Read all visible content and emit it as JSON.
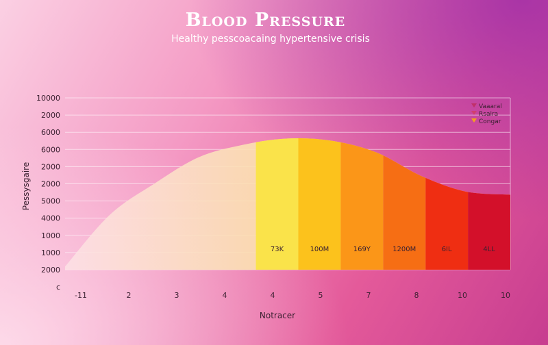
{
  "chart_data": {
    "type": "area",
    "title": "Blood Pressure",
    "subtitle": "Healthy pesscoacaing hypertensive crisis",
    "ylabel": "Pessysgaire",
    "xlabel": "Notracer",
    "y_tick_labels": [
      "10000",
      "2000",
      "6000",
      "6000",
      "2000",
      "2000",
      "5000",
      "4000",
      "1000",
      "1000",
      "2000",
      "c"
    ],
    "x_tick_labels": [
      "-11",
      "2",
      "3",
      "4",
      "4",
      "5",
      "7",
      "8",
      "10",
      "10"
    ],
    "x": [
      0,
      1,
      2,
      3,
      4,
      5,
      6,
      7,
      8,
      9,
      10
    ],
    "values": [
      0.2,
      3.5,
      5.5,
      7.2,
      8.0,
      8.4,
      8.25,
      7.5,
      6.0,
      5.0,
      4.8
    ],
    "ylim": [
      0,
      11
    ],
    "xlim": [
      0,
      10.5
    ],
    "bands": [
      {
        "x_start": 4.5,
        "x_end": 5.5,
        "label": "73K",
        "color": "#fae34a"
      },
      {
        "x_start": 5.5,
        "x_end": 6.5,
        "label": "100M",
        "color": "#fcc21c"
      },
      {
        "x_start": 6.5,
        "x_end": 7.5,
        "label": "169Y",
        "color": "#fb9618"
      },
      {
        "x_start": 7.5,
        "x_end": 8.5,
        "label": "1200M",
        "color": "#f66e14"
      },
      {
        "x_start": 8.5,
        "x_end": 9.5,
        "label": "6IL",
        "color": "#ef2e12"
      },
      {
        "x_start": 9.5,
        "x_end": 10.5,
        "label": "4LL",
        "color": "#d3102a"
      }
    ],
    "legend": [
      {
        "label": "Vaaaral",
        "color": "#c0306a"
      },
      {
        "label": "Rsaira",
        "color": "#d0406e"
      },
      {
        "label": "Congar",
        "color": "#f5a020"
      }
    ],
    "legend_position": "top-right",
    "grid": true
  }
}
